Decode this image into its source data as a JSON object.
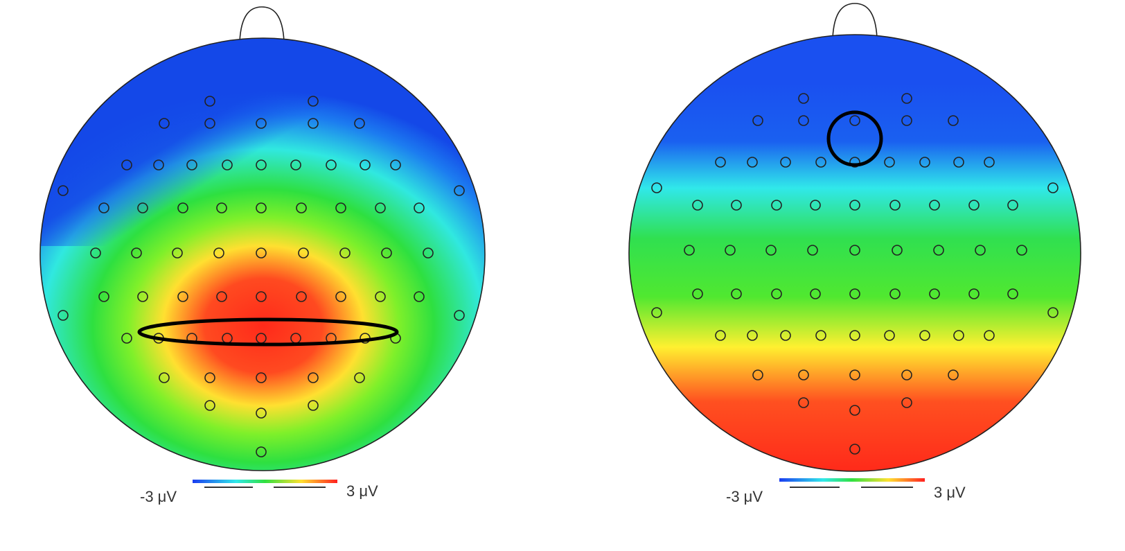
{
  "maps": [
    {
      "scale": {
        "min_label": "-3 μV",
        "max_label": "3 μV"
      }
    },
    {
      "scale": {
        "min_label": "-3 μV",
        "max_label": "3 μV"
      }
    }
  ]
}
